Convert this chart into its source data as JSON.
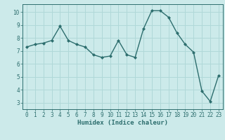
{
  "x": [
    0,
    1,
    2,
    3,
    4,
    5,
    6,
    7,
    8,
    9,
    10,
    11,
    12,
    13,
    14,
    15,
    16,
    17,
    18,
    19,
    20,
    21,
    22,
    23
  ],
  "y": [
    7.3,
    7.5,
    7.6,
    7.8,
    8.9,
    7.8,
    7.5,
    7.3,
    6.7,
    6.5,
    6.6,
    7.8,
    6.7,
    6.5,
    8.7,
    10.1,
    10.1,
    9.6,
    8.4,
    7.5,
    6.9,
    3.9,
    3.1,
    5.1
  ],
  "line_color": "#2d6e6e",
  "marker": "D",
  "marker_size": 2,
  "line_width": 1.0,
  "bg_color": "#cceaea",
  "grid_color": "#b0d8d8",
  "xlabel": "Humidex (Indice chaleur)",
  "ylim": [
    2.5,
    10.6
  ],
  "xlim": [
    -0.5,
    23.5
  ],
  "yticks": [
    3,
    4,
    5,
    6,
    7,
    8,
    9,
    10
  ],
  "xticks": [
    0,
    1,
    2,
    3,
    4,
    5,
    6,
    7,
    8,
    9,
    10,
    11,
    12,
    13,
    14,
    15,
    16,
    17,
    18,
    19,
    20,
    21,
    22,
    23
  ],
  "tick_color": "#2d6e6e",
  "label_fontsize": 6.5,
  "tick_fontsize": 5.5
}
